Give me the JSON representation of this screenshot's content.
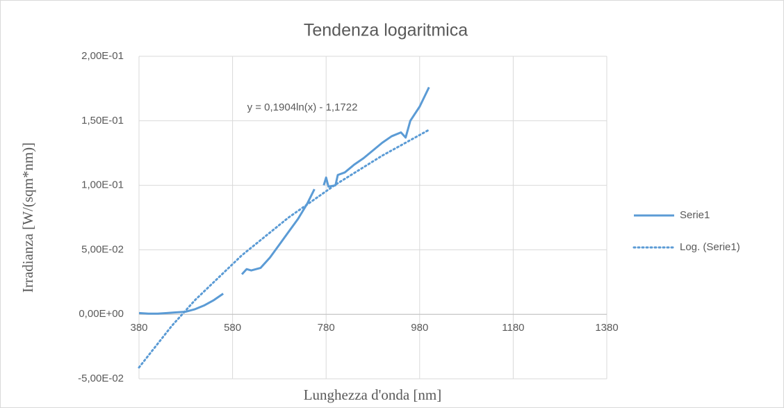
{
  "chart_data": {
    "type": "line",
    "title": "Tendenza logaritmica",
    "xlabel": "Lunghezza d'onda [nm]",
    "ylabel": "Irradianza [W/(sqm*nm)]",
    "annotation": "y = 0,1904ln(x) - 1,1722",
    "xlim": [
      380,
      1380
    ],
    "xticks": [
      380,
      580,
      780,
      980,
      1180,
      1380
    ],
    "ylim": [
      -0.05,
      0.2
    ],
    "yticks": [
      {
        "value": -0.05,
        "label": "-5,00E-02"
      },
      {
        "value": 0,
        "label": "0,00E+00"
      },
      {
        "value": 0.05,
        "label": "5,00E-02"
      },
      {
        "value": 0.1,
        "label": "1,00E-01"
      },
      {
        "value": 0.15,
        "label": "1,50E-01"
      },
      {
        "value": 0.2,
        "label": "2,00E-01"
      }
    ],
    "grid": true,
    "legend": "right",
    "series": [
      {
        "name": "Serie1",
        "color": "#5b9bd5",
        "style": "solid",
        "x": [
          380,
          400,
          420,
          440,
          460,
          480,
          500,
          520,
          540,
          560,
          580,
          600,
          610,
          620,
          640,
          660,
          680,
          700,
          720,
          740,
          755,
          770,
          775,
          780,
          785,
          800,
          805,
          820,
          840,
          860,
          880,
          900,
          920,
          940,
          950,
          960,
          980,
          1000
        ],
        "values": [
          0.001,
          0.0005,
          0.0005,
          0.001,
          0.0015,
          0.002,
          0.004,
          0.007,
          0.011,
          0.016,
          null,
          0.031,
          0.035,
          0.034,
          0.036,
          0.044,
          0.054,
          0.064,
          0.074,
          0.086,
          0.097,
          null,
          0.1,
          0.106,
          0.099,
          0.1,
          0.108,
          0.11,
          0.116,
          0.121,
          0.127,
          0.133,
          0.138,
          0.141,
          0.137,
          0.15,
          0.161,
          0.176
        ]
      },
      {
        "name": "Log. (Serie1)",
        "color": "#5b9bd5",
        "style": "dotted",
        "x": [
          380,
          450,
          500,
          600,
          700,
          800,
          900,
          1000
        ],
        "values": [
          -0.0412,
          -0.009,
          0.0111,
          0.0458,
          0.0751,
          0.1005,
          0.123,
          0.143
        ]
      }
    ]
  }
}
